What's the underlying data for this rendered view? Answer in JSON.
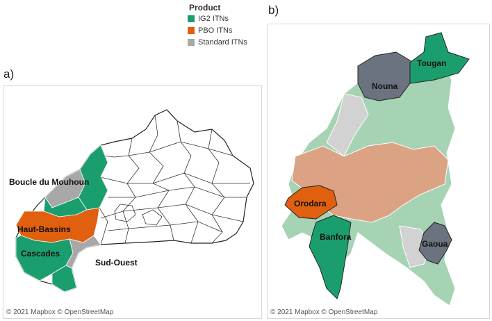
{
  "legend": {
    "title": "Product",
    "items": [
      {
        "label": "IG2 ITNs",
        "color": "#1b9e6e"
      },
      {
        "label": "PBO ITNs",
        "color": "#e06010"
      },
      {
        "label": "Standard ITNs",
        "color": "#a8a8a8"
      }
    ]
  },
  "panel_a": {
    "label": "a)",
    "attribution": "© 2021 Mapbox © OpenStreetMap",
    "regions": [
      {
        "name": "Boucle du Mouhoun",
        "product": "mixed"
      },
      {
        "name": "Haut-Bassins",
        "product": "PBO ITNs"
      },
      {
        "name": "Cascades",
        "product": "IG2 ITNs"
      },
      {
        "name": "Sud-Ouest",
        "product": "Standard ITNs"
      }
    ]
  },
  "panel_b": {
    "label": "b)",
    "attribution": "© 2021 Mapbox © OpenStreetMap",
    "districts": [
      {
        "name": "Nouna",
        "product": "Standard ITNs"
      },
      {
        "name": "Tougan",
        "product": "IG2 ITNs"
      },
      {
        "name": "Orodara",
        "product": "PBO ITNs"
      },
      {
        "name": "Banfora",
        "product": "IG2 ITNs"
      },
      {
        "name": "Gaoua",
        "product": "Standard ITNs"
      }
    ]
  }
}
